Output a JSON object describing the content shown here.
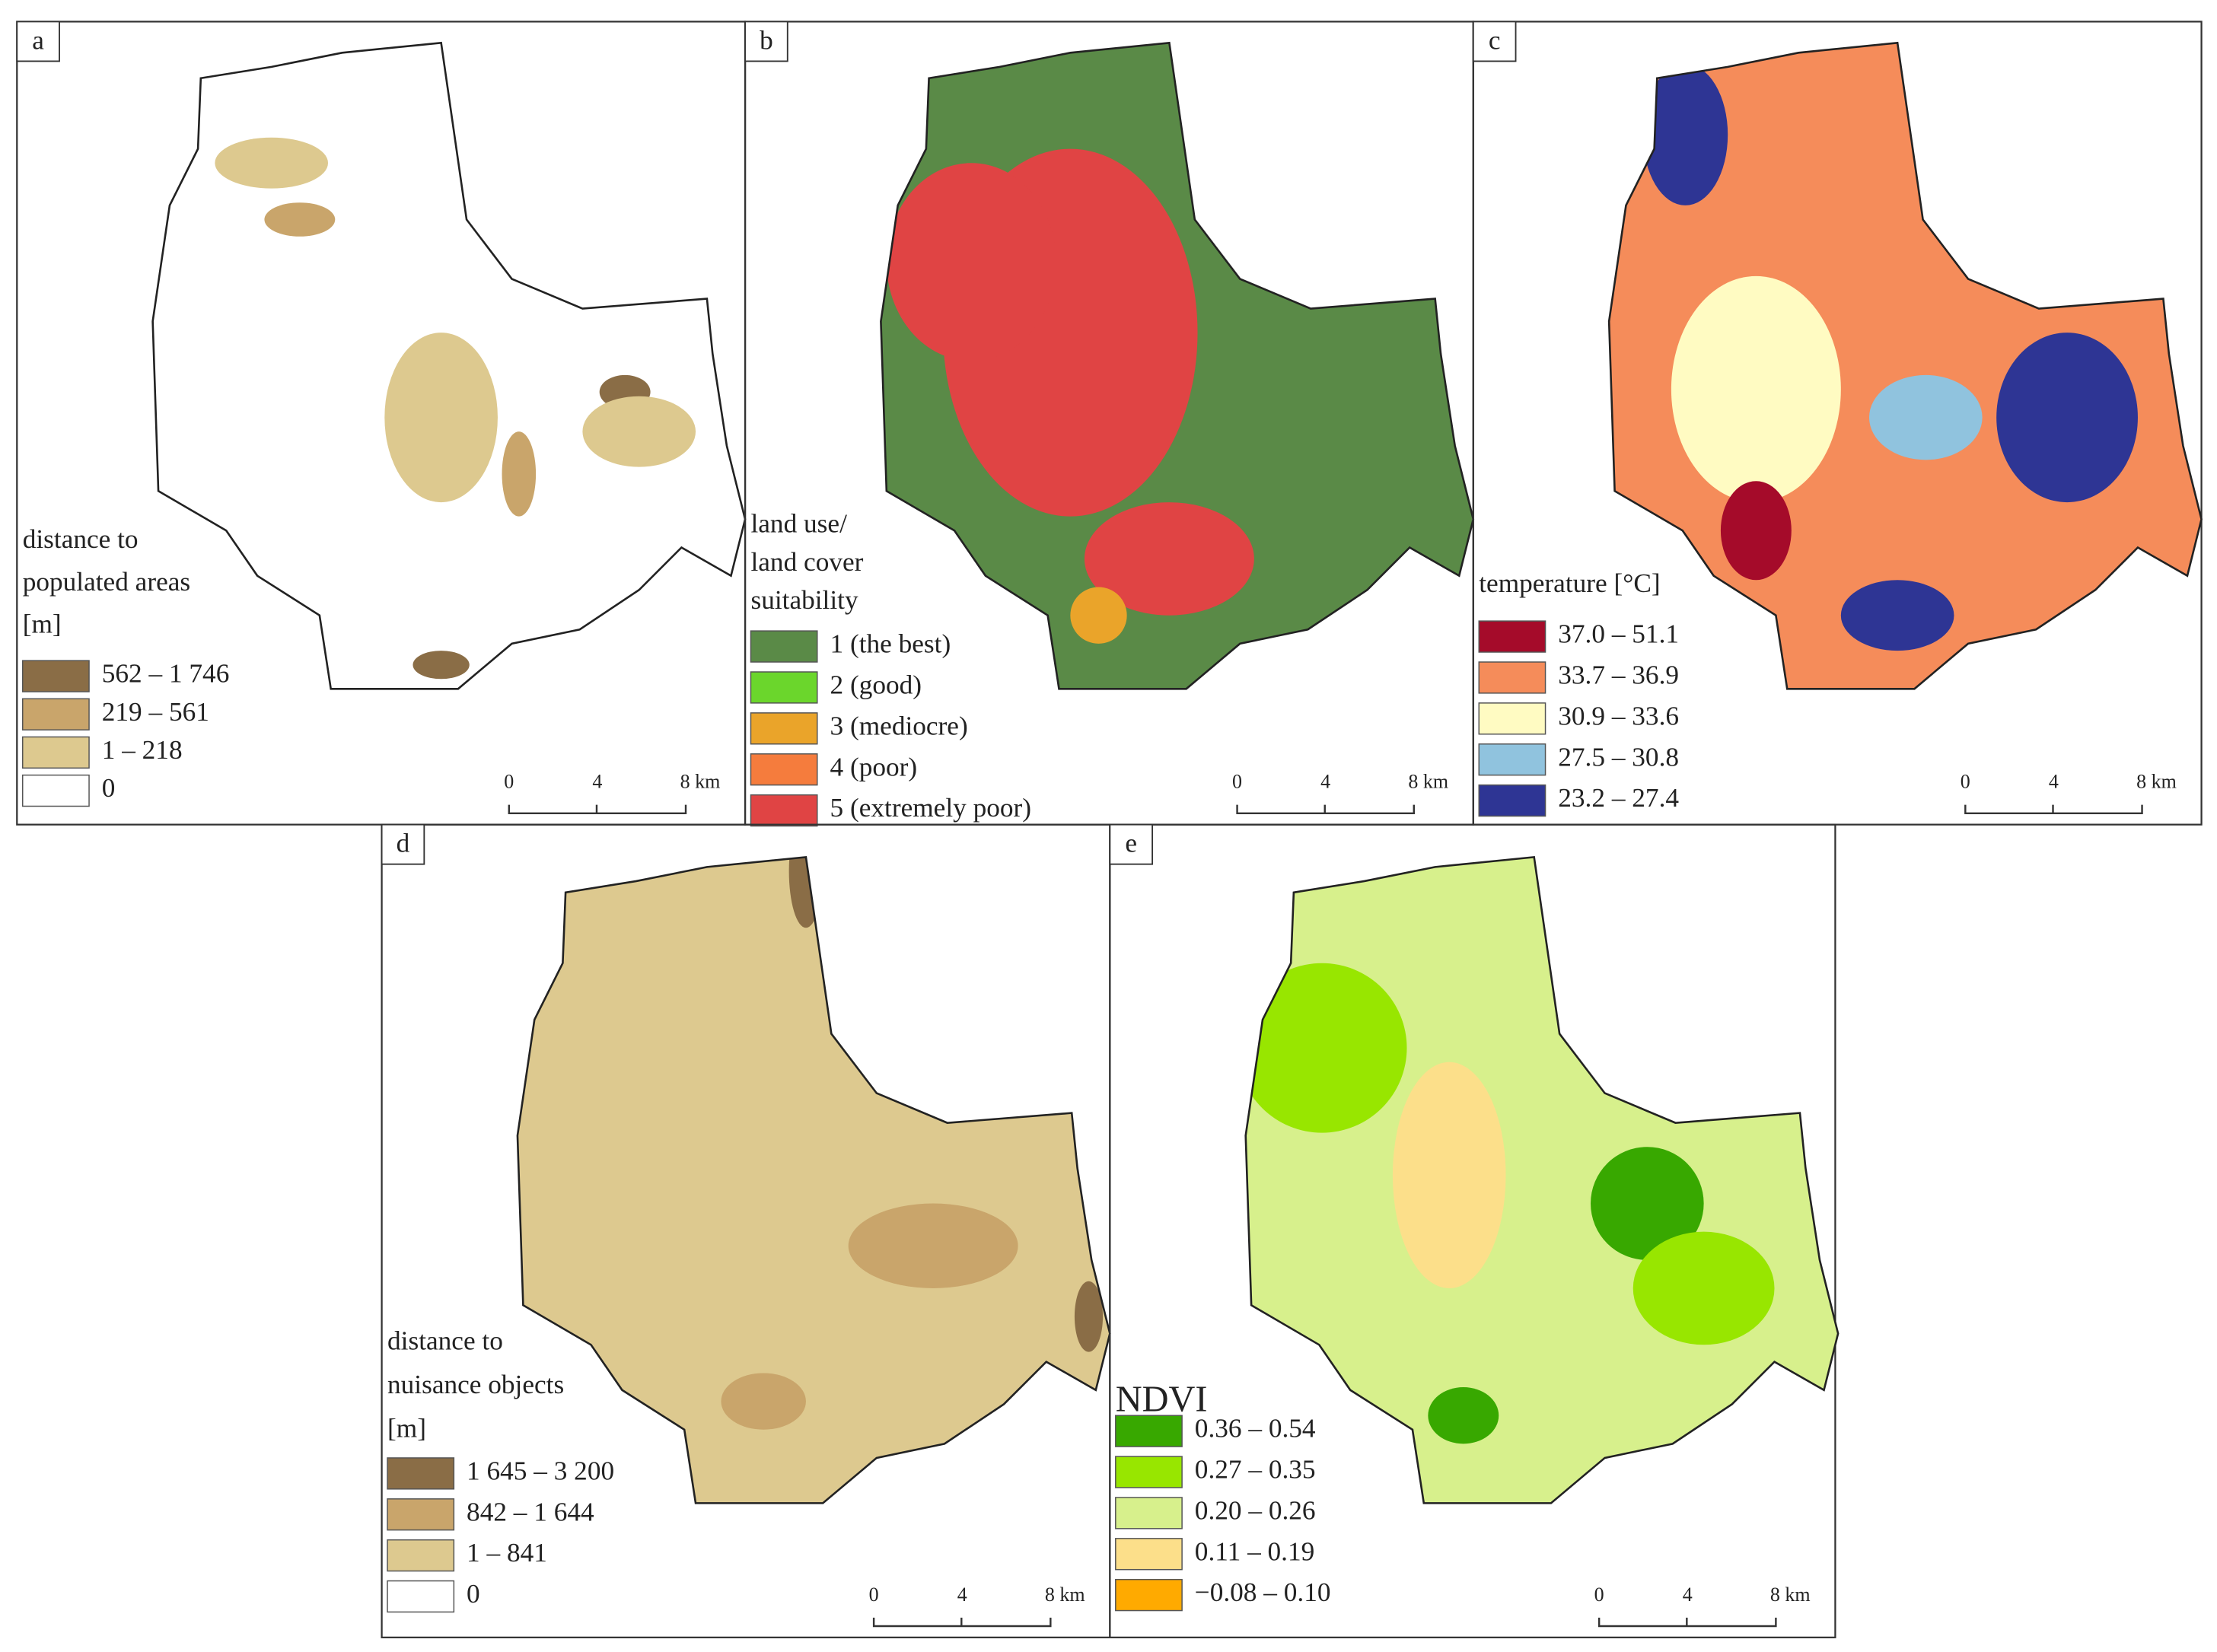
{
  "panels": [
    {
      "label": "a",
      "legend_title": [
        "distance to",
        "populated areas",
        "[m]"
      ],
      "items": [
        {
          "color": "#8a6d46",
          "label": "562 – 1 746"
        },
        {
          "color": "#c9a56b",
          "label": "219 – 561"
        },
        {
          "color": "#ddc98f",
          "label": "1 – 218"
        },
        {
          "color": "#ffffff",
          "label": "0"
        }
      ]
    },
    {
      "label": "b",
      "legend_title": [
        "land use/",
        "land cover",
        "suitability"
      ],
      "items": [
        {
          "color": "#5a8a47",
          "label": "1 (the best)"
        },
        {
          "color": "#6bd62c",
          "label": "2 (good)"
        },
        {
          "color": "#eaa42a",
          "label": "3 (mediocre)"
        },
        {
          "color": "#f57c3d",
          "label": "4 (poor)"
        },
        {
          "color": "#e04444",
          "label": "5 (extremely poor)"
        }
      ]
    },
    {
      "label": "c",
      "legend_title": [
        "temperature [°C]"
      ],
      "items": [
        {
          "color": "#a50b2a",
          "label": "37.0 – 51.1"
        },
        {
          "color": "#f58c5a",
          "label": "33.7 – 36.9"
        },
        {
          "color": "#fffbc2",
          "label": "30.9 – 33.6"
        },
        {
          "color": "#90c3de",
          "label": "27.5 – 30.8"
        },
        {
          "color": "#2e3594",
          "label": "23.2 – 27.4"
        }
      ]
    },
    {
      "label": "d",
      "legend_title": [
        "distance to",
        "nuisance objects",
        "[m]"
      ],
      "items": [
        {
          "color": "#8a6d46",
          "label": "1 645 – 3 200"
        },
        {
          "color": "#c9a56b",
          "label": "842 – 1 644"
        },
        {
          "color": "#ddc98f",
          "label": "1 – 841"
        },
        {
          "color": "#ffffff",
          "label": "0"
        }
      ]
    },
    {
      "label": "e",
      "legend_title": [
        "NDVI"
      ],
      "items": [
        {
          "color": "#38a800",
          "label": "0.36 – 0.54"
        },
        {
          "color": "#98e600",
          "label": "0.27 – 0.35"
        },
        {
          "color": "#d7f08c",
          "label": "0.20 – 0.26"
        },
        {
          "color": "#fcdf8a",
          "label": "0.11 – 0.19"
        },
        {
          "color": "#ffaa00",
          "label": "−0.08 – 0.10"
        }
      ]
    }
  ],
  "scale_bar": [
    "0",
    "4",
    "8 km"
  ]
}
